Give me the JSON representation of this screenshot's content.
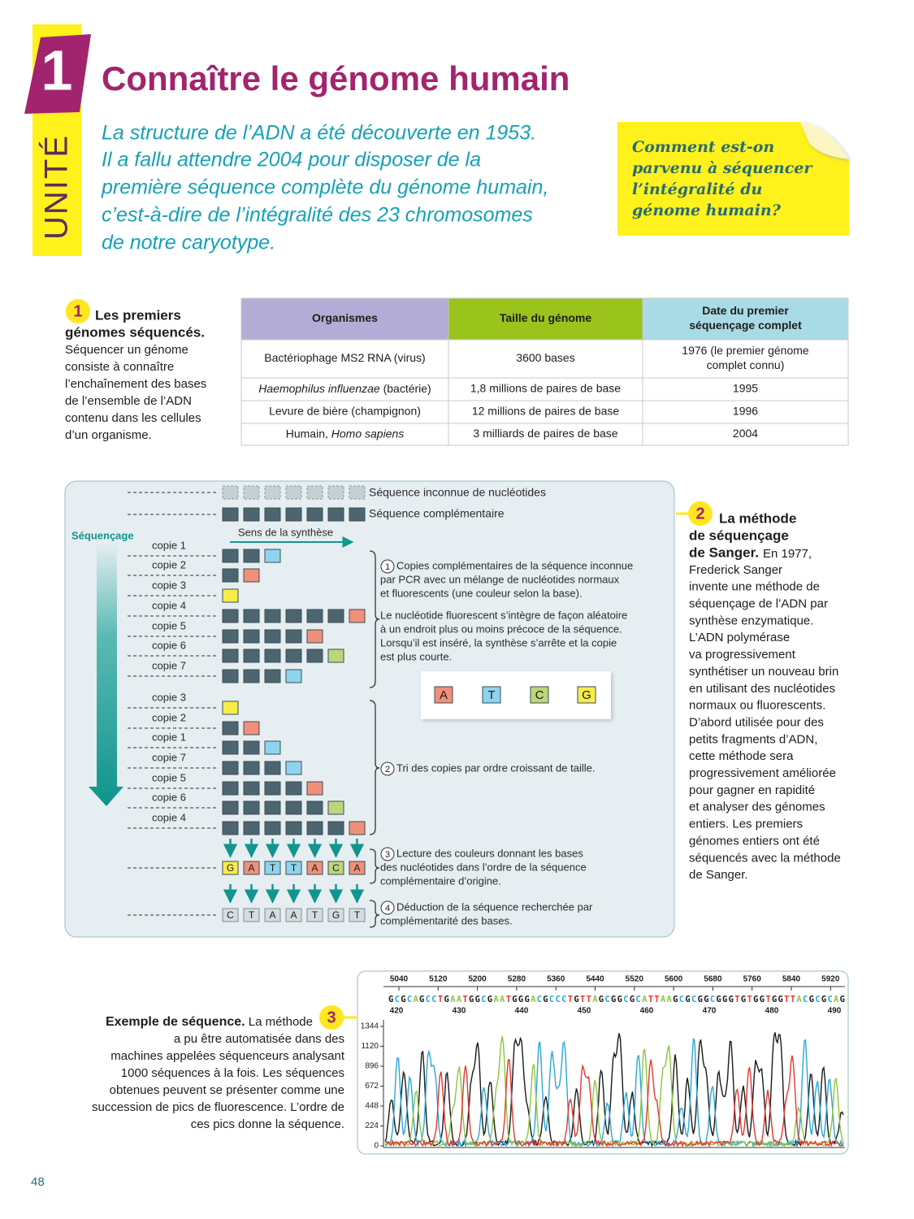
{
  "header": {
    "unit_number": "1",
    "unit_label": "UNITÉ",
    "title": "Connaître le génome humain",
    "intro": [
      "La structure de l’ADN a été découverte en 1953.",
      "Il a fallu attendre 2004 pour disposer de la",
      "première séquence complète du génome humain,",
      "c’est-à-dire de l’intégralité des 23 chromosomes",
      "de notre caryotype."
    ],
    "question": [
      "Comment est-on",
      "parvenu à séquencer",
      "l’intégralité du",
      "génome humain?"
    ]
  },
  "doc1": {
    "number": "1",
    "title": [
      "Les premiers",
      "génomes séquencés."
    ],
    "text": [
      "Séquencer un génome",
      "consiste à connaître",
      "l’enchaînement des bases",
      "de l’ensemble de l’ADN",
      "contenu dans les cellules",
      "d’un organisme."
    ],
    "table": {
      "headers": [
        "Organismes",
        "Taille du génome",
        [
          "Date du premier",
          "séquençage complet"
        ]
      ],
      "rows": [
        [
          "Bactériophage MS2 RNA (virus)",
          "3600 bases",
          [
            "1976 (le premier génome",
            "complet connu)"
          ]
        ],
        [
          [
            {
              "italic": "Haemophilus influenzae"
            },
            {
              "text": " (bactérie)"
            }
          ],
          "1,8 millions de paires de base",
          "1995"
        ],
        [
          "Levure de bière (champignon)",
          "12 millions de paires de base",
          "1996"
        ],
        [
          [
            {
              "text": "Humain, "
            },
            {
              "italic": "Homo sapiens"
            }
          ],
          "3 milliards de paires de base",
          "2004"
        ]
      ]
    }
  },
  "doc2": {
    "number": "2",
    "title": [
      "La méthode",
      "de séquençage",
      "de Sanger."
    ],
    "text": [
      "En 1977,",
      "Frederick Sanger",
      "invente une méthode de",
      "séquençage de l’ADN par",
      "synthèse enzymatique.",
      "L’ADN polymérase",
      "va progressivement",
      "synthétiser un nouveau brin",
      "en utilisant des nucléotides",
      "normaux ou fluorescents.",
      "D’abord utilisée pour des",
      "petits fragments d’ADN,",
      "cette méthode sera",
      "progressivement améliorée",
      "pour gagner en rapidité",
      "et analyser des génomes",
      "entiers. Les premiers",
      "génomes entiers ont été",
      "séquencés avec la méthode",
      "de Sanger."
    ],
    "diagram": {
      "unknown_label": "Séquence inconnue de nucléotides",
      "complement_label": "Séquence complémentaire",
      "sequencing_label": "Séquençage",
      "synthesis_label": "Sens de la synthèse",
      "copies_unsorted": [
        "copie 1",
        "copie 2",
        "copie 3",
        "copie 4",
        "copie 5",
        "copie 6",
        "copie 7"
      ],
      "copies_sorted": [
        "copie 3",
        "copie 2",
        "copie 1",
        "copie 7",
        "copie 5",
        "copie 6",
        "copie 4"
      ],
      "steps": [
        {
          "number": "1",
          "lines": [
            "Copies complémentaires de la séquence inconnue",
            "par PCR avec un mélange de nucléotides normaux",
            "et fluorescents (une couleur selon la base)."
          ],
          "note": [
            "Le nucléotide fluorescent s’intègre de façon aléatoire",
            "à un endroit plus ou moins précoce de la séquence.",
            "Lorsqu’il est inséré, la synthèse s’arrête et la copie",
            "est plus courte."
          ]
        },
        {
          "number": "2",
          "lines": [
            "Tri des copies par ordre croissant de taille."
          ]
        },
        {
          "number": "3",
          "lines": [
            "Lecture des couleurs donnant les bases",
            "des nucléotides dans l’ordre de la séquence",
            "complémentaire d’origine."
          ]
        },
        {
          "number": "4",
          "lines": [
            "Déduction de la séquence recherchée par",
            "complémentarité des bases."
          ]
        }
      ],
      "legend": [
        "A",
        "T",
        "C",
        "G"
      ],
      "read_bases": [
        "G",
        "A",
        "T",
        "T",
        "A",
        "C",
        "A"
      ],
      "deduced_bases": [
        "C",
        "T",
        "A",
        "A",
        "T",
        "G",
        "T"
      ]
    }
  },
  "doc3": {
    "number": "3",
    "title": "Exemple de séquence.",
    "lines": [
      " La méthode",
      "a pu être automatisée dans des",
      "machines appelées séquenceurs analysant",
      "1000 séquences à la fois. Les séquences",
      "obtenues peuvent se présenter comme une",
      "succession de pics de fluorescence. L’ordre de",
      "ces pics donne la séquence."
    ],
    "chromatogram": {
      "top_scale": [
        5040,
        5120,
        5200,
        5280,
        5360,
        5440,
        5520,
        5600,
        5680,
        5760,
        5840,
        5920
      ],
      "sequence": "GCGCAGCCTGAATGGCGAATGGGACGCCCTGTTAGCGGCGCATTAAGCGCGGCGGGTGTGGTGGTTACGCGCAG",
      "base_index": [
        420,
        430,
        440,
        450,
        460,
        470,
        480,
        490
      ],
      "intensity_ticks": [
        1344,
        1120,
        896,
        672,
        448,
        224,
        0
      ]
    }
  },
  "page_number": "48"
}
